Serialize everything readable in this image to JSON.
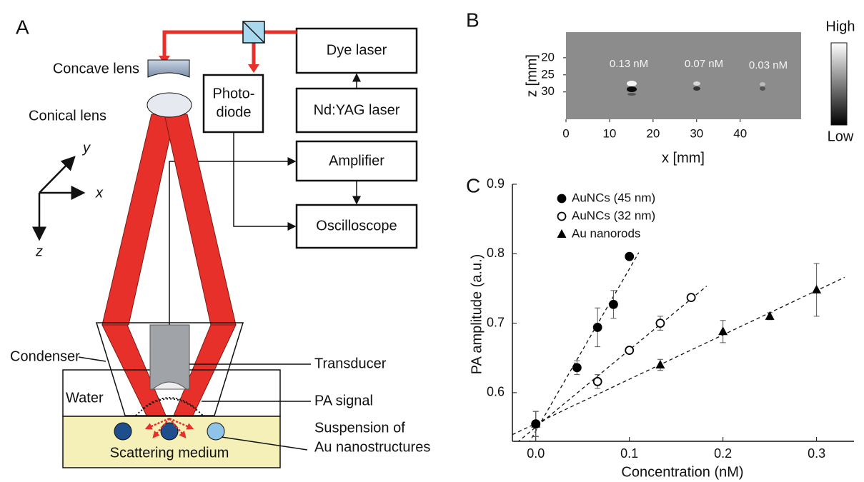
{
  "panel_a": {
    "label": "A",
    "dye_laser": "Dye laser",
    "nd_yag_laser": "Nd:YAG laser",
    "photodiode": [
      "Photo-",
      "diode"
    ],
    "concave_lens": "Concave lens",
    "conical_lens": "Conical lens",
    "amplifier": "Amplifier",
    "oscilloscope": "Oscilloscope",
    "axes": {
      "x": "x",
      "y": "y",
      "z": "z"
    },
    "condenser": "Condenser",
    "transducer": "Transducer",
    "water": "Water",
    "pa_signal": "PA signal",
    "scattering_medium": "Scattering medium",
    "suspension": [
      "Suspension of",
      "Au nanostructures"
    ]
  },
  "panel_b": {
    "label": "B",
    "xlabel": "x [mm]",
    "zlabel": "z [mm]",
    "xlim": [
      0,
      54
    ],
    "zlim": [
      12.5,
      38
    ],
    "xticks": [
      0,
      10,
      20,
      30,
      40
    ],
    "zticks": [
      20,
      25,
      30
    ],
    "annotations": [
      "0.13 nM",
      "0.07 nM",
      "0.03 nM"
    ],
    "colorbar": {
      "high": "High",
      "low": "Low"
    }
  },
  "chart_data": {
    "type": "scatter",
    "panel_label": "C",
    "xlabel": "Concentration (nM)",
    "ylabel": "PA amplitude (a.u.)",
    "xlim": [
      -0.025,
      0.34
    ],
    "ylim": [
      0.53,
      0.9
    ],
    "xticks": [
      {
        "value": 0,
        "label": "0.0"
      },
      {
        "value": 0.1,
        "label": "0.1"
      },
      {
        "value": 0.2,
        "label": "0.2"
      },
      {
        "value": 0.3,
        "label": "0.3"
      }
    ],
    "yticks": [
      0.6,
      0.7,
      0.8,
      0.9
    ],
    "legend": "upper left",
    "series": [
      {
        "name": "AuNCs (45 nm)",
        "marker": "filled-circle",
        "color": "#000000",
        "x": [
          0,
          0.044,
          0.066,
          0.083,
          0.1
        ],
        "values": [
          0.555,
          0.636,
          0.694,
          0.727,
          0.796
        ],
        "errors": [
          0.018,
          0.01,
          0.028,
          0.02,
          0.003
        ]
      },
      {
        "name": "AuNCs (32 nm)",
        "marker": "open-circle",
        "color": "#000000",
        "x": [
          0,
          0.066,
          0.1,
          0.133,
          0.166
        ],
        "values": [
          0.555,
          0.616,
          0.661,
          0.7,
          0.737
        ],
        "errors": [
          0.018,
          0.01,
          0.003,
          0.01,
          0.003
        ]
      },
      {
        "name": "Au nanorods",
        "marker": "triangle",
        "color": "#000000",
        "x": [
          0,
          0.133,
          0.2,
          0.25,
          0.3
        ],
        "values": [
          0.555,
          0.64,
          0.688,
          0.71,
          0.748
        ],
        "errors": [
          0.018,
          0.008,
          0.016,
          0.005,
          0.038
        ]
      }
    ]
  }
}
